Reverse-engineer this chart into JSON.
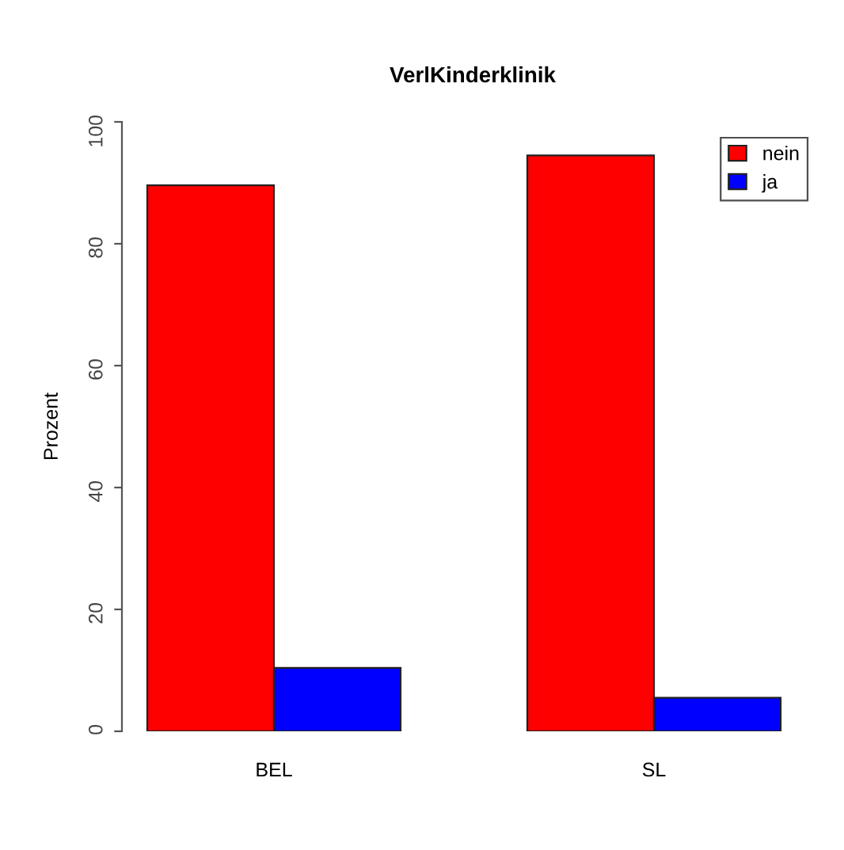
{
  "chart_data": {
    "type": "bar",
    "title": "VerlKinderklinik",
    "ylabel": "Prozent",
    "categories": [
      "BEL",
      "SL"
    ],
    "series": [
      {
        "name": "nein",
        "color": "#ff0000",
        "values": [
          89.6,
          94.5
        ]
      },
      {
        "name": "ja",
        "color": "#0000ff",
        "values": [
          10.4,
          5.5
        ]
      }
    ],
    "ylim": [
      0,
      100
    ],
    "yticks": [
      0,
      20,
      40,
      60,
      80,
      100
    ],
    "grid": false,
    "legend": "top right"
  }
}
